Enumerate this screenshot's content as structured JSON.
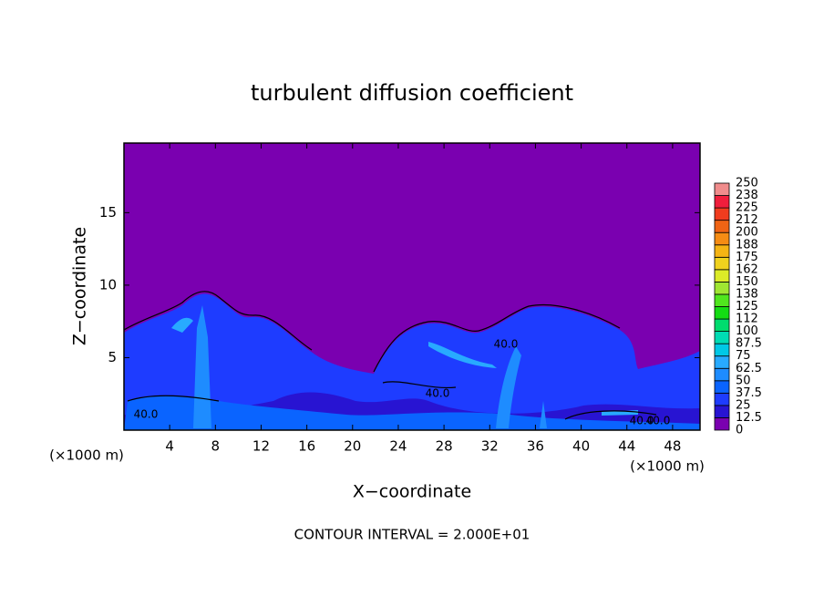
{
  "chart_data": {
    "type": "contour",
    "title": "turbulent diffusion coefficient",
    "xlabel": "X−coordinate",
    "ylabel": "Z−coordinate",
    "x_units": [
      "(×1000 m)",
      "(×1000 m)"
    ],
    "footer": "CONTOUR INTERVAL = 2.000E+01",
    "xlim": [
      0,
      50.4
    ],
    "ylim": [
      0,
      19.8
    ],
    "xticks": [
      4,
      8,
      12,
      16,
      20,
      24,
      28,
      32,
      36,
      40,
      44,
      48
    ],
    "yticks": [
      5,
      10,
      15
    ],
    "contour_labels": [
      "40.0",
      "40.0",
      "40.0",
      "40.0",
      "40.0"
    ],
    "colorbar": {
      "levels": [
        0,
        12.5,
        25,
        37.5,
        50,
        62.5,
        75,
        87.5,
        100,
        {
          "value": 112.5,
          "label": "112"
        },
        125,
        {
          "value": 137.5,
          "label": "138"
        },
        150,
        {
          "value": 162.5,
          "label": "162"
        },
        175,
        {
          "value": 187.5,
          "label": "188"
        },
        200,
        {
          "value": 212.5,
          "label": "212"
        },
        225,
        {
          "value": 237.5,
          "label": "238"
        },
        250
      ],
      "colors": [
        "#7a00b0",
        "#2814d2",
        "#1e3cff",
        "#0a64ff",
        "#1e8cff",
        "#28aaff",
        "#00c8e6",
        "#00dcb4",
        "#00dc6e",
        "#14dc14",
        "#50e61e",
        "#a0e632",
        "#dceb28",
        "#f0d21e",
        "#f5b414",
        "#f58c14",
        "#f06414",
        "#f03c1e",
        "#f01e3c",
        "#f08c8c"
      ]
    }
  }
}
